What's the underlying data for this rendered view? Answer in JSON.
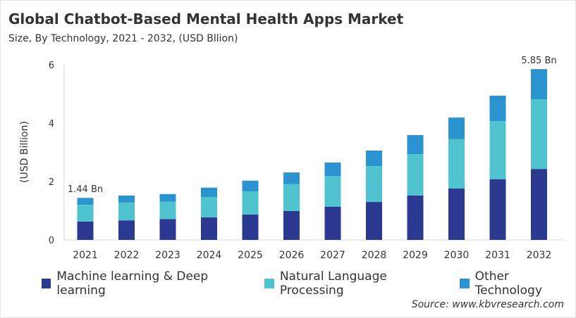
{
  "title": "Global Chatbot-Based  Mental Health Apps Market",
  "subtitle": "Size, By Technology, 2021 - 2032, (USD Bllion)",
  "source": "Source: www.kbvresearch.com",
  "chart_data": {
    "type": "bar",
    "stacked": true,
    "categories": [
      "2021",
      "2022",
      "2023",
      "2024",
      "2025",
      "2026",
      "2027",
      "2028",
      "2029",
      "2030",
      "2031",
      "2032"
    ],
    "series": [
      {
        "name": "Machine learning & Deep learning",
        "color": "#2b3990",
        "values": [
          0.63,
          0.67,
          0.71,
          0.77,
          0.87,
          0.99,
          1.14,
          1.3,
          1.52,
          1.76,
          2.08,
          2.43
        ]
      },
      {
        "name": "Natural Language Processing",
        "color": "#4fc4cf",
        "values": [
          0.57,
          0.61,
          0.6,
          0.7,
          0.79,
          0.92,
          1.05,
          1.23,
          1.42,
          1.69,
          1.99,
          2.39
        ]
      },
      {
        "name": "Other Technology",
        "color": "#2a93d0",
        "values": [
          0.24,
          0.24,
          0.26,
          0.32,
          0.37,
          0.4,
          0.46,
          0.53,
          0.65,
          0.74,
          0.87,
          1.03
        ]
      }
    ],
    "data_labels": [
      {
        "category": "2021",
        "text": "1.44 Bn"
      },
      {
        "category": "2032",
        "text": "5.85 Bn"
      }
    ],
    "ylabel": "(USD Billion)",
    "xlabel": "",
    "ylim": [
      0,
      6
    ],
    "yticks": [
      "0",
      "2",
      "4",
      "6"
    ],
    "grid": false,
    "legend": "bottom"
  }
}
